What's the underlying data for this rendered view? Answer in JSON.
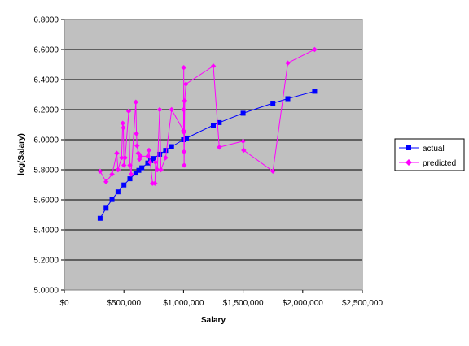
{
  "chart_data": {
    "type": "line",
    "xlabel": "Salary",
    "ylabel": "log(Salary)",
    "xlim": [
      0,
      2500000
    ],
    "ylim": [
      5.0,
      6.8
    ],
    "x_ticks": [
      0,
      500000,
      1000000,
      1500000,
      2000000,
      2500000
    ],
    "x_tick_labels": [
      "$0",
      "$500,000",
      "$1,000,000",
      "$1,500,000",
      "$2,000,000",
      "$2,500,000"
    ],
    "y_ticks": [
      5.0,
      5.2,
      5.4,
      5.6,
      5.8,
      6.0,
      6.2,
      6.4,
      6.6,
      6.8
    ],
    "y_tick_labels": [
      "5.0000",
      "5.2000",
      "5.4000",
      "5.6000",
      "5.8000",
      "6.0000",
      "6.2000",
      "6.4000",
      "6.6000",
      "6.8000"
    ],
    "grid": "horizontal",
    "plot_background": "#c0c0c0",
    "legend_position": "right",
    "series": [
      {
        "name": "actual",
        "color": "#0000ff",
        "marker": "square",
        "points": [
          [
            300000,
            5.477
          ],
          [
            350000,
            5.544
          ],
          [
            400000,
            5.602
          ],
          [
            450000,
            5.653
          ],
          [
            500000,
            5.699
          ],
          [
            550000,
            5.74
          ],
          [
            600000,
            5.778
          ],
          [
            625000,
            5.796
          ],
          [
            650000,
            5.813
          ],
          [
            700000,
            5.845
          ],
          [
            725000,
            5.86
          ],
          [
            750000,
            5.875
          ],
          [
            800000,
            5.903
          ],
          [
            850000,
            5.929
          ],
          [
            900000,
            5.954
          ],
          [
            1000000,
            6.0
          ],
          [
            1025000,
            6.011
          ],
          [
            1250000,
            6.097
          ],
          [
            1300000,
            6.114
          ],
          [
            1500000,
            6.176
          ],
          [
            1750000,
            6.243
          ],
          [
            1875000,
            6.273
          ],
          [
            2100000,
            6.322
          ]
        ]
      },
      {
        "name": "predicted",
        "color": "#ff00ff",
        "marker": "diamond",
        "points": [
          [
            300000,
            5.79
          ],
          [
            350000,
            5.72
          ],
          [
            400000,
            5.77
          ],
          [
            440000,
            5.91
          ],
          [
            450000,
            5.8
          ],
          [
            480000,
            5.88
          ],
          [
            490000,
            6.11
          ],
          [
            495000,
            6.08
          ],
          [
            500000,
            5.83
          ],
          [
            510000,
            5.88
          ],
          [
            540000,
            6.19
          ],
          [
            550000,
            5.83
          ],
          [
            560000,
            5.77
          ],
          [
            600000,
            6.25
          ],
          [
            605000,
            6.04
          ],
          [
            610000,
            5.96
          ],
          [
            620000,
            5.91
          ],
          [
            630000,
            5.87
          ],
          [
            640000,
            5.89
          ],
          [
            700000,
            5.89
          ],
          [
            710000,
            5.93
          ],
          [
            720000,
            5.85
          ],
          [
            740000,
            5.71
          ],
          [
            760000,
            5.71
          ],
          [
            765000,
            5.85
          ],
          [
            780000,
            5.8
          ],
          [
            800000,
            6.2
          ],
          [
            810000,
            5.8
          ],
          [
            850000,
            5.88
          ],
          [
            900000,
            6.2
          ],
          [
            1000000,
            6.06
          ],
          [
            1001000,
            6.2
          ],
          [
            1002000,
            6.48
          ],
          [
            1003000,
            6.05
          ],
          [
            1004000,
            5.92
          ],
          [
            1005000,
            5.83
          ],
          [
            1010000,
            6.26
          ],
          [
            1020000,
            6.37
          ],
          [
            1250000,
            6.49
          ],
          [
            1300000,
            5.95
          ],
          [
            1500000,
            5.99
          ],
          [
            1505000,
            5.93
          ],
          [
            1750000,
            5.79
          ],
          [
            1875000,
            6.51
          ],
          [
            2100000,
            6.6
          ]
        ]
      }
    ]
  }
}
